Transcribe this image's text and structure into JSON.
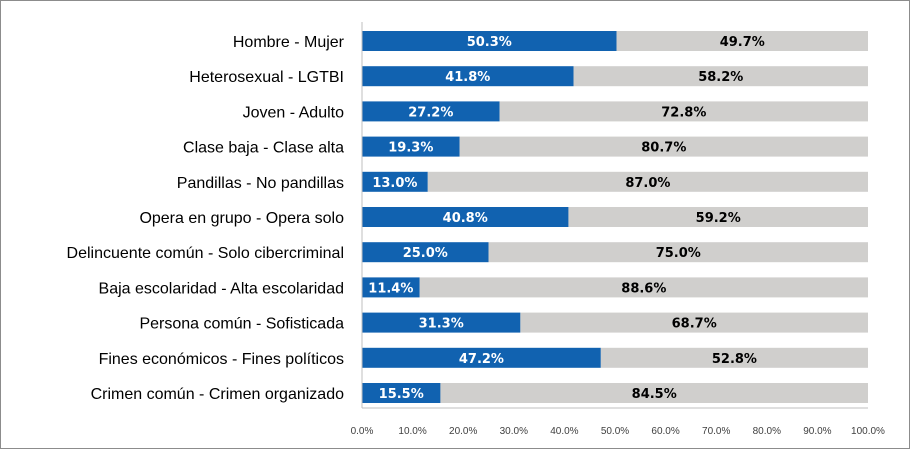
{
  "chart_data": {
    "type": "bar",
    "orientation": "horizontal",
    "stacked": true,
    "percent_stacked": true,
    "title": "",
    "xlabel": "",
    "ylabel": "",
    "xlim": [
      0,
      100
    ],
    "grid": false,
    "legend": "none",
    "x_ticks": [
      "0.0%",
      "10.0%",
      "20.0%",
      "30.0%",
      "40.0%",
      "50.0%",
      "60.0%",
      "70.0%",
      "80.0%",
      "90.0%",
      "100.0%"
    ],
    "categories": [
      "Hombre - Mujer",
      "Heterosexual - LGTBI",
      "Joven - Adulto",
      "Clase baja - Clase alta",
      "Pandillas - No pandillas",
      "Opera en grupo - Opera solo",
      "Delincuente común - Solo cibercriminal",
      "Baja escolaridad - Alta escolaridad",
      "Persona común - Sofisticada",
      "Fines económicos - Fines políticos",
      "Crimen común - Crimen organizado"
    ],
    "series": [
      {
        "name": "first",
        "color": "#1162b0",
        "values": [
          50.3,
          41.8,
          27.2,
          19.3,
          13.0,
          40.8,
          25.0,
          11.4,
          31.3,
          47.2,
          15.5
        ],
        "labels": [
          "50.3%",
          "41.8%",
          "27.2%",
          "19.3%",
          "13.0%",
          "40.8%",
          "25.0%",
          "11.4%",
          "31.3%",
          "47.2%",
          "15.5%"
        ]
      },
      {
        "name": "second",
        "color": "#d0cfcd",
        "values": [
          49.7,
          58.2,
          72.8,
          80.7,
          87.0,
          59.2,
          75.0,
          88.6,
          68.7,
          52.8,
          84.5
        ],
        "labels": [
          "49.7%",
          "58.2%",
          "72.8%",
          "80.7%",
          "87.0%",
          "59.2%",
          "75.0%",
          "88.6%",
          "68.7%",
          "52.8%",
          "84.5%"
        ]
      }
    ]
  }
}
